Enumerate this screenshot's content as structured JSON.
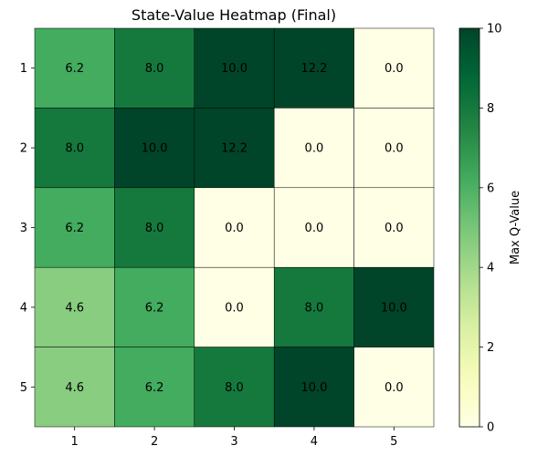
{
  "chart_data": {
    "type": "heatmap",
    "title": "State-Value Heatmap (Final)",
    "x_tick_labels": [
      "1",
      "2",
      "3",
      "4",
      "5"
    ],
    "y_tick_labels": [
      "1",
      "2",
      "3",
      "4",
      "5"
    ],
    "values": [
      [
        6.2,
        8.0,
        10.0,
        12.2,
        0.0
      ],
      [
        8.0,
        10.0,
        12.2,
        0.0,
        0.0
      ],
      [
        6.2,
        8.0,
        0.0,
        0.0,
        0.0
      ],
      [
        4.6,
        6.2,
        0.0,
        8.0,
        10.0
      ],
      [
        4.6,
        6.2,
        8.0,
        10.0,
        0.0
      ]
    ],
    "value_format_decimals": 1,
    "colormap": "YlGn",
    "color_range": [
      0,
      10
    ],
    "colorbar": {
      "label": "Max Q-Value",
      "ticks": [
        "0",
        "2",
        "4",
        "6",
        "8",
        "10"
      ],
      "placement": "right"
    },
    "grid_lines": true
  }
}
